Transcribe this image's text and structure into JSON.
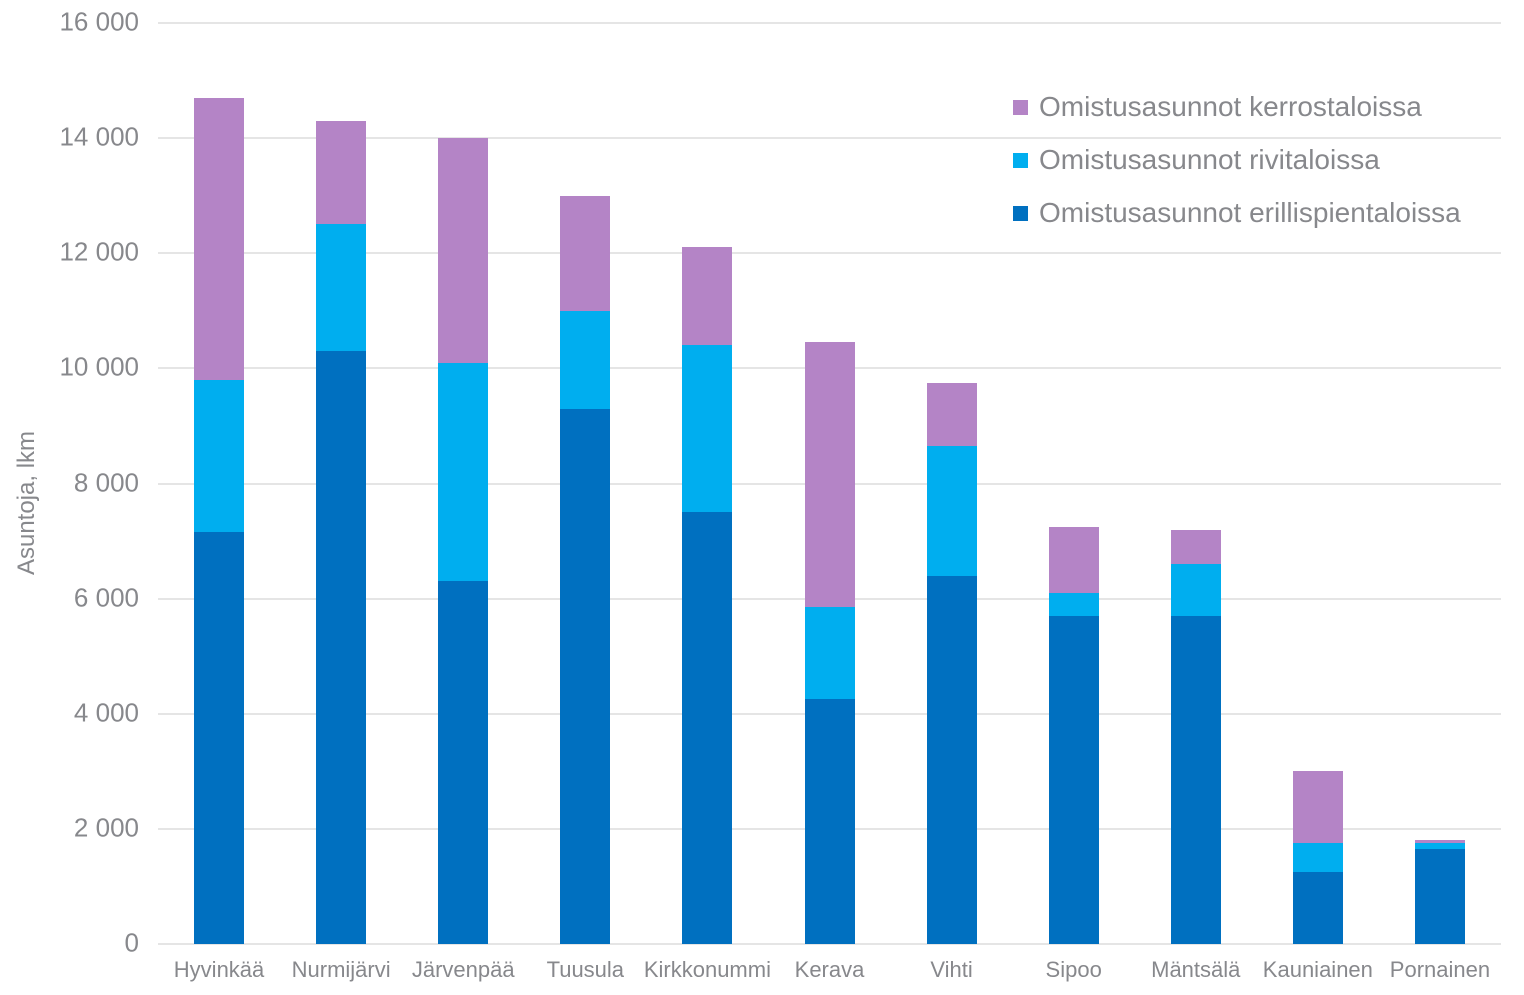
{
  "chart_data": {
    "type": "bar",
    "stacked": true,
    "title": "",
    "xlabel": "",
    "ylabel": "Asuntoja, lkm",
    "ylim": [
      0,
      16000
    ],
    "ytick_step": 2000,
    "yticks": [
      "0",
      "2 000",
      "4 000",
      "6 000",
      "8 000",
      "10 000",
      "12 000",
      "14 000",
      "16 000"
    ],
    "grid": "horizontal",
    "legend_position": "top-right",
    "categories": [
      "Hyvinkää",
      "Nurmijärvi",
      "Järvenpää",
      "Tuusula",
      "Kirkkonummi",
      "Kerava",
      "Vihti",
      "Sipoo",
      "Mäntsälä",
      "Kauniainen",
      "Pornainen"
    ],
    "series": [
      {
        "name": "Omistusasunnot erillispientaloissa",
        "color": "#0070C0",
        "values": [
          7150,
          10300,
          6300,
          9300,
          7500,
          4250,
          6400,
          5700,
          5700,
          1250,
          1650
        ]
      },
      {
        "name": "Omistusasunnot rivitaloissa",
        "color": "#00AEEF",
        "values": [
          2650,
          2200,
          3800,
          1700,
          2900,
          1600,
          2250,
          400,
          900,
          500,
          100
        ]
      },
      {
        "name": "Omistusasunnot kerrostaloissa",
        "color": "#B484C6",
        "values": [
          4900,
          1800,
          3900,
          2000,
          1700,
          4600,
          1100,
          1150,
          600,
          1250,
          50
        ]
      }
    ],
    "legend_order": [
      "Omistusasunnot kerrostaloissa",
      "Omistusasunnot rivitaloissa",
      "Omistusasunnot erillispientaloissa"
    ]
  },
  "colors": {
    "text": "#87888c",
    "grid": "#e5e5e5",
    "background": "#ffffff"
  }
}
